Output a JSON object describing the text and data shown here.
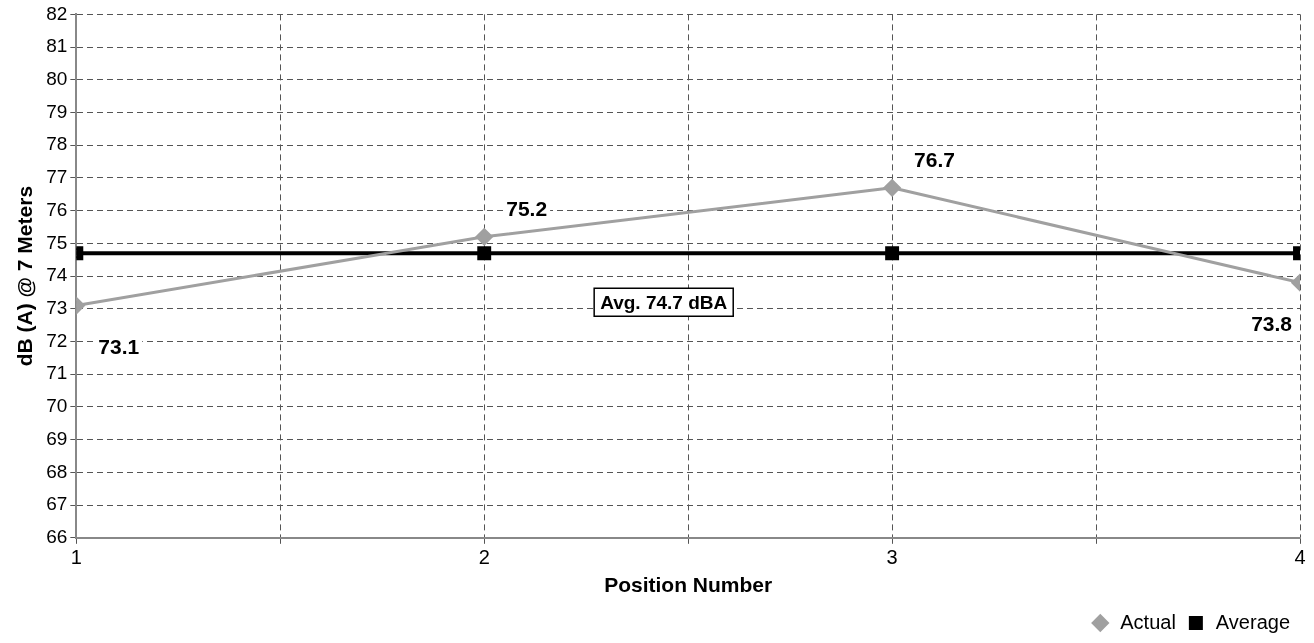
{
  "chart_data": {
    "type": "line",
    "xlabel": "Position Number",
    "ylabel": "dB (A) @ 7 Meters",
    "x": [
      1,
      2,
      3,
      4
    ],
    "series": [
      {
        "name": "Actual",
        "color": "#a0a0a0",
        "values": [
          73.1,
          75.2,
          76.7,
          73.8
        ],
        "marker": "diamond",
        "value_labels": [
          "73.1",
          "75.2",
          "76.7",
          "73.8"
        ]
      },
      {
        "name": "Average",
        "color": "#000000",
        "values": [
          74.7,
          74.7,
          74.7,
          74.7
        ],
        "marker": "square"
      }
    ],
    "xlim": [
      1,
      4
    ],
    "xticks": [
      1,
      {
        "value": 1.5,
        "label": null
      },
      2,
      {
        "value": 2.5,
        "label": null
      },
      3,
      {
        "value": 3.5,
        "label": null
      },
      4
    ],
    "ylim": [
      66,
      82
    ],
    "yticks": [
      66,
      67,
      68,
      69,
      70,
      71,
      72,
      73,
      74,
      75,
      76,
      77,
      78,
      79,
      80,
      81,
      82
    ],
    "grid": true,
    "legend": "bottom right",
    "line_style": "solid",
    "annotations": [
      "Avg. 74.7 dBA"
    ]
  }
}
